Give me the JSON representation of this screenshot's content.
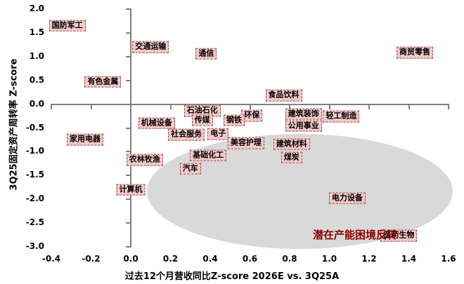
{
  "chart_data": {
    "type": "scatter",
    "title": "",
    "xlabel": "过去12个月营收同比Z-score 2026E vs. 3Q25A",
    "ylabel": "3Q25固定资产周转率 Z-score",
    "xlim": [
      -0.4,
      1.6
    ],
    "ylim": [
      -3.0,
      2.0
    ],
    "x_ticks": [
      -0.4,
      -0.2,
      0.0,
      0.2,
      0.4,
      0.6,
      0.8,
      1.0,
      1.2,
      1.4,
      1.6
    ],
    "y_ticks": [
      2.0,
      1.5,
      1.0,
      0.5,
      0.0,
      -0.5,
      -1.0,
      -1.5,
      -2.0,
      -2.5,
      -3.0
    ],
    "grid": false,
    "legend_position": "none",
    "points": [
      {
        "label": "国防军工",
        "x": -0.32,
        "y": 1.65
      },
      {
        "label": "交通运输",
        "x": 0.1,
        "y": 1.2
      },
      {
        "label": "通信",
        "x": 0.38,
        "y": 1.06
      },
      {
        "label": "商贸零售",
        "x": 1.43,
        "y": 1.08
      },
      {
        "label": "有色金属",
        "x": -0.14,
        "y": 0.47
      },
      {
        "label": "食品饮料",
        "x": 0.77,
        "y": 0.18
      },
      {
        "label": "石油石化",
        "x": 0.36,
        "y": -0.14
      },
      {
        "label": "环保",
        "x": 0.61,
        "y": -0.24
      },
      {
        "label": "建筑装饰",
        "x": 0.87,
        "y": -0.21
      },
      {
        "label": "轻工制造",
        "x": 1.06,
        "y": -0.26
      },
      {
        "label": "传媒",
        "x": 0.36,
        "y": -0.34
      },
      {
        "label": "钢铁",
        "x": 0.52,
        "y": -0.34
      },
      {
        "label": "机械设备",
        "x": 0.13,
        "y": -0.4
      },
      {
        "label": "公用事业",
        "x": 0.87,
        "y": -0.46
      },
      {
        "label": "社会服务",
        "x": 0.28,
        "y": -0.64
      },
      {
        "label": "电子",
        "x": 0.44,
        "y": -0.63
      },
      {
        "label": "家用电器",
        "x": -0.23,
        "y": -0.75
      },
      {
        "label": "美容护理",
        "x": 0.58,
        "y": -0.82
      },
      {
        "label": "建筑材料",
        "x": 0.81,
        "y": -0.84
      },
      {
        "label": "基础化工",
        "x": 0.39,
        "y": -1.08
      },
      {
        "label": "煤炭",
        "x": 0.81,
        "y": -1.12
      },
      {
        "label": "农林牧渔",
        "x": 0.07,
        "y": -1.17
      },
      {
        "label": "汽车",
        "x": 0.3,
        "y": -1.36
      },
      {
        "label": "计算机",
        "x": 0.0,
        "y": -1.8
      },
      {
        "label": "电力设备",
        "x": 1.09,
        "y": -1.98
      },
      {
        "label": "医药生物",
        "x": 1.35,
        "y": -2.77
      }
    ],
    "annotation": {
      "text": "潜在产能困境反转",
      "x": 0.89,
      "y": -2.56
    },
    "ellipse": {
      "cx": 0.85,
      "cy": -1.83,
      "rx": 0.77,
      "ry": 1.21
    },
    "colors": {
      "label_fill": "#f2c9c9",
      "label_border": "#9c4b4b",
      "label_text": "#000000",
      "axis": "#7f7f7f",
      "tick_text": "#000000",
      "ellipse_fill": "#d9d9d9",
      "annotation_text": "#8b0000",
      "background": "#ffffff"
    }
  }
}
